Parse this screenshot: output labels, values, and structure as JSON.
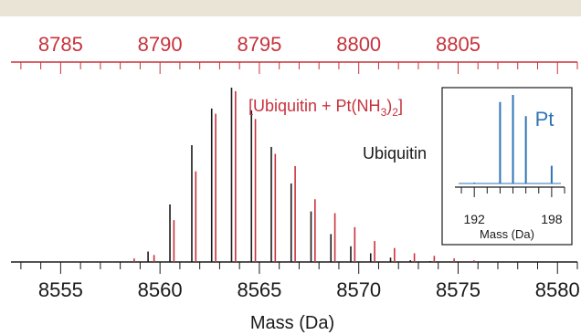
{
  "chart_data": {
    "type": "line",
    "bottom_axis": {
      "label": "Mass (Da)",
      "range": [
        8552.5,
        8581
      ],
      "ticks": [
        "8555",
        "8560",
        "8565",
        "8570",
        "8575",
        "8580"
      ]
    },
    "top_axis": {
      "range": [
        8782.5,
        8811
      ],
      "ticks": [
        "8785",
        "8790",
        "8795",
        "8800",
        "8805"
      ]
    },
    "series": [
      {
        "name": "Ubiquitin",
        "color": "#1a1a1a",
        "x": [
          8559.4,
          8560.5,
          8561.6,
          8562.6,
          8563.6,
          8564.6,
          8565.6,
          8566.6,
          8567.6,
          8568.6,
          8569.6,
          8570.6,
          8571.6,
          8572.6,
          8573.6
        ],
        "y": [
          0.06,
          0.33,
          0.67,
          0.88,
          1.0,
          0.87,
          0.66,
          0.45,
          0.29,
          0.16,
          0.09,
          0.05,
          0.025,
          0.01,
          0.005
        ]
      },
      {
        "name": "[Ubiquitin + Pt(NH3)2]",
        "label_parts": [
          "[Ubiquitin + Pt(NH",
          "3",
          ")",
          "2",
          "]"
        ],
        "color": "#c8323c",
        "x": [
          8788.7,
          8789.7,
          8790.7,
          8791.8,
          8792.8,
          8793.8,
          8794.8,
          8795.8,
          8796.8,
          8797.8,
          8798.8,
          8799.8,
          8800.8,
          8801.8,
          8802.8,
          8803.8,
          8804.8,
          8805.8
        ],
        "y": [
          0.02,
          0.04,
          0.24,
          0.52,
          0.85,
          0.98,
          0.82,
          0.62,
          0.55,
          0.36,
          0.28,
          0.2,
          0.12,
          0.08,
          0.05,
          0.035,
          0.02,
          0.01
        ]
      }
    ],
    "inset": {
      "type": "line",
      "title": "Pt",
      "color": "#2f74b5",
      "xlabel": "Mass (Da)",
      "xlim": [
        190.5,
        199
      ],
      "ticks": [
        "192",
        "198"
      ],
      "x": [
        190,
        192,
        194,
        195,
        196,
        198
      ],
      "y": [
        0.01,
        0.01,
        0.92,
        1.0,
        0.76,
        0.2
      ]
    }
  }
}
